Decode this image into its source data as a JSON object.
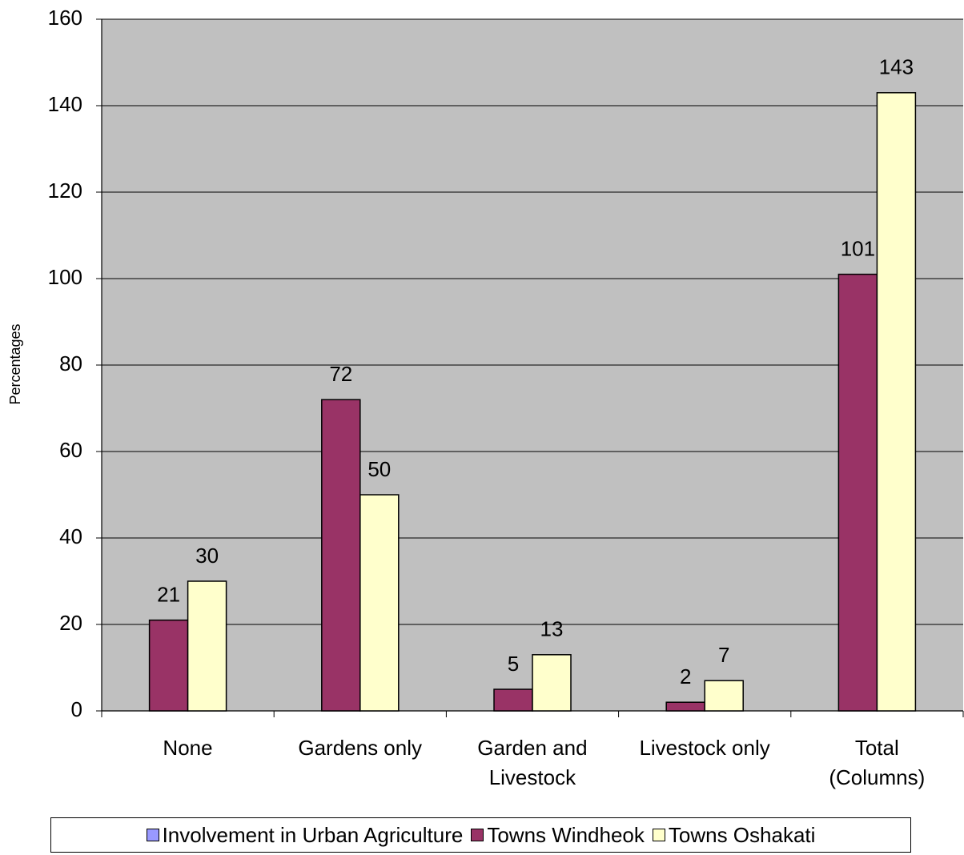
{
  "chart_data": {
    "type": "bar",
    "y_label": "Percentages",
    "categories": [
      "None",
      "Gardens only",
      "Garden and\nLivestock",
      "Livestock only",
      "Total\n(Columns)"
    ],
    "series": [
      {
        "name": "Involvement in Urban Agriculture",
        "color": "#9999ff",
        "values": [
          null,
          null,
          null,
          null,
          null
        ]
      },
      {
        "name": "Towns Windheok",
        "color": "#993366",
        "values": [
          21,
          72,
          5,
          2,
          101
        ]
      },
      {
        "name": "Towns Oshakati",
        "color": "#ffffcc",
        "values": [
          30,
          50,
          13,
          7,
          143
        ]
      }
    ],
    "ylim": [
      0,
      160
    ],
    "yticks": [
      0,
      20,
      40,
      60,
      80,
      100,
      120,
      140,
      160
    ],
    "grid": true,
    "background": "#c0c0c0",
    "legend": "bottom"
  }
}
